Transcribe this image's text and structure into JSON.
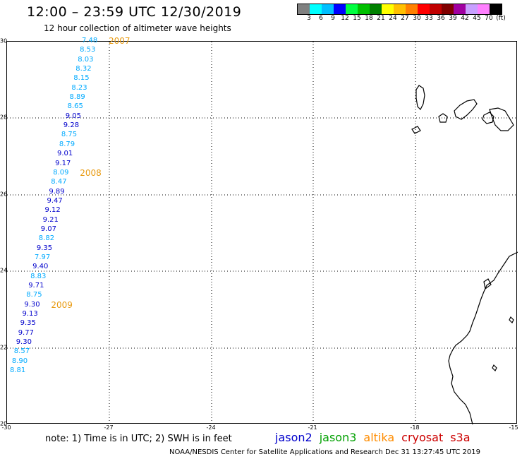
{
  "title": "12:00 – 23:59 UTC 12/30/2019",
  "subtitle": "12 hour collection of altimeter wave heights",
  "colorbar": {
    "colors": [
      "#808080",
      "#00ffff",
      "#00bfff",
      "#0000ff",
      "#00ff40",
      "#00c000",
      "#008000",
      "#ffff00",
      "#ffc000",
      "#ff8000",
      "#ff0000",
      "#c00000",
      "#800000",
      "#a000a0",
      "#c8a0ff",
      "#ff80ff",
      "#000000"
    ],
    "labels": [
      "3",
      "6",
      "9",
      "12",
      "15",
      "18",
      "21",
      "24",
      "27",
      "30",
      "33",
      "36",
      "39",
      "42",
      "45",
      "70",
      "(ft)"
    ]
  },
  "map": {
    "lon_range": [
      -30,
      -15
    ],
    "lat_range": [
      20,
      30
    ],
    "y_ticks": [
      "30",
      "28",
      "26",
      "24",
      "22",
      "20"
    ],
    "x_ticks": [
      "-30",
      "-27",
      "-24",
      "-21",
      "-18",
      "-15"
    ]
  },
  "track": [
    {
      "v": "7.48",
      "c": "#00aaff"
    },
    {
      "v": "8.53",
      "c": "#00aaff"
    },
    {
      "v": "8.03",
      "c": "#00aaff"
    },
    {
      "v": "8.32",
      "c": "#00aaff"
    },
    {
      "v": "8.15",
      "c": "#00aaff"
    },
    {
      "v": "8.23",
      "c": "#00aaff"
    },
    {
      "v": "8.89",
      "c": "#00aaff"
    },
    {
      "v": "8.65",
      "c": "#00aaff"
    },
    {
      "v": "9.05",
      "c": "#0000cc"
    },
    {
      "v": "9.28",
      "c": "#0000cc"
    },
    {
      "v": "8.75",
      "c": "#00aaff"
    },
    {
      "v": "8.79",
      "c": "#00aaff"
    },
    {
      "v": "9.01",
      "c": "#0000cc"
    },
    {
      "v": "9.17",
      "c": "#0000cc"
    },
    {
      "v": "8.09",
      "c": "#00aaff"
    },
    {
      "v": "8.47",
      "c": "#00aaff"
    },
    {
      "v": "9.89",
      "c": "#0000cc"
    },
    {
      "v": "9.47",
      "c": "#0000cc"
    },
    {
      "v": "9.12",
      "c": "#0000cc"
    },
    {
      "v": "9.21",
      "c": "#0000cc"
    },
    {
      "v": "9.07",
      "c": "#0000cc"
    },
    {
      "v": "8.82",
      "c": "#00aaff"
    },
    {
      "v": "9.35",
      "c": "#0000cc"
    },
    {
      "v": "7.97",
      "c": "#00aaff"
    },
    {
      "v": "9.40",
      "c": "#0000cc"
    },
    {
      "v": "8.83",
      "c": "#00aaff"
    },
    {
      "v": "9.71",
      "c": "#0000cc"
    },
    {
      "v": "8.75",
      "c": "#00aaff"
    },
    {
      "v": "9.30",
      "c": "#0000cc"
    },
    {
      "v": "9.13",
      "c": "#0000cc"
    },
    {
      "v": "9.35",
      "c": "#0000cc"
    },
    {
      "v": "9.77",
      "c": "#0000cc"
    },
    {
      "v": "9.30",
      "c": "#0000cc"
    },
    {
      "v": "8.57",
      "c": "#00aaff"
    },
    {
      "v": "8.90",
      "c": "#00aaff"
    },
    {
      "v": "8.81",
      "c": "#00aaff"
    }
  ],
  "year_labels": [
    {
      "text": "2007",
      "after": 0
    },
    {
      "text": "2008",
      "after": 14
    },
    {
      "text": "2009",
      "after": 28
    }
  ],
  "note": "note:  1) Time is in UTC;  2) SWH is in feet",
  "legend": [
    {
      "name": "jason2",
      "color": "#0000cc"
    },
    {
      "name": "jason3",
      "color": "#00a000"
    },
    {
      "name": "altika",
      "color": "#ff8c00"
    },
    {
      "name": "cryosat",
      "color": "#cc0000"
    },
    {
      "name": "s3a",
      "color": "#cc0000"
    }
  ],
  "credit": "NOAA/NESDIS Center for Satellite Applications and Research     Dec 31 13:27:45 UTC 2019"
}
